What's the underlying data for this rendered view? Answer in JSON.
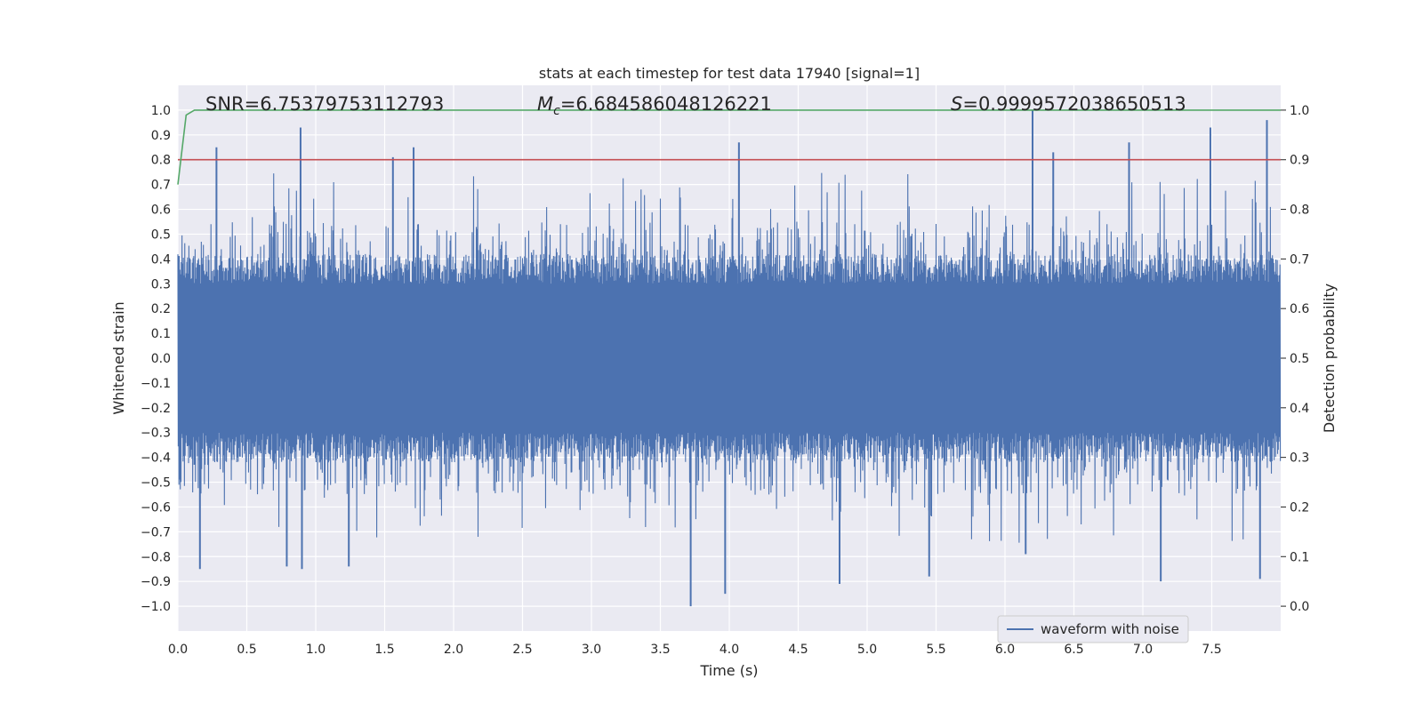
{
  "chart_data": {
    "type": "line",
    "title": "stats at each timestep for test data 17940 [signal=1]",
    "xlabel": "Time (s)",
    "ylabel": "Whitened strain",
    "y2label": "Detection probability",
    "xlim": [
      0.0,
      8.0
    ],
    "ylim": [
      -1.1,
      1.1
    ],
    "y2lim": [
      -0.05,
      1.05
    ],
    "x_ticks": [
      0.0,
      0.5,
      1.0,
      1.5,
      2.0,
      2.5,
      3.0,
      3.5,
      4.0,
      4.5,
      5.0,
      5.5,
      6.0,
      6.5,
      7.0,
      7.5
    ],
    "y_ticks": [
      -1.0,
      -0.9,
      -0.8,
      -0.7,
      -0.6,
      -0.5,
      -0.4,
      -0.3,
      -0.2,
      -0.1,
      0.0,
      0.1,
      0.2,
      0.3,
      0.4,
      0.5,
      0.6,
      0.7,
      0.8,
      0.9,
      1.0
    ],
    "y2_ticks": [
      0.0,
      0.1,
      0.2,
      0.3,
      0.4,
      0.5,
      0.6,
      0.7,
      0.8,
      0.9,
      1.0
    ],
    "grid": true,
    "legend": {
      "position": "lower-right",
      "entries": [
        "waveform with noise"
      ]
    },
    "annotations": {
      "snr_text": "SNR=6.75379753112793",
      "mc_symbol": "M",
      "mc_sub": "c",
      "mc_value": "=6.684586048126221",
      "s_symbol": "S",
      "s_value": "=0.9999572038650513"
    },
    "series": [
      {
        "name": "waveform with noise",
        "axis": "left",
        "color": "#4c72b0",
        "style": "dense noise, |y| up to 1.0, bulk within ±0.4",
        "sample_peaks": [
          {
            "x": 0.28,
            "y": 0.85
          },
          {
            "x": 0.89,
            "y": 0.93
          },
          {
            "x": 1.56,
            "y": 0.81
          },
          {
            "x": 1.71,
            "y": 0.85
          },
          {
            "x": 4.07,
            "y": 0.87
          },
          {
            "x": 6.2,
            "y": 1.0
          },
          {
            "x": 6.35,
            "y": 0.83
          },
          {
            "x": 6.9,
            "y": 0.87
          },
          {
            "x": 7.49,
            "y": 0.93
          },
          {
            "x": 7.9,
            "y": 0.96
          },
          {
            "x": 0.16,
            "y": -0.85
          },
          {
            "x": 0.79,
            "y": -0.84
          },
          {
            "x": 0.9,
            "y": -0.85
          },
          {
            "x": 1.24,
            "y": -0.84
          },
          {
            "x": 3.72,
            "y": -1.0
          },
          {
            "x": 3.97,
            "y": -0.95
          },
          {
            "x": 4.8,
            "y": -0.91
          },
          {
            "x": 5.45,
            "y": -0.88
          },
          {
            "x": 6.15,
            "y": -0.79
          },
          {
            "x": 7.13,
            "y": -0.9
          },
          {
            "x": 7.85,
            "y": -0.89
          }
        ]
      },
      {
        "name": "detection probability",
        "axis": "right",
        "color": "#55a868",
        "x": [
          0.0,
          0.06,
          0.12,
          0.2,
          8.0
        ],
        "y": [
          0.85,
          0.99,
          1.0,
          1.0,
          1.0
        ]
      },
      {
        "name": "threshold",
        "axis": "right",
        "color": "#c44e52",
        "x": [
          0.0,
          8.0
        ],
        "y": [
          0.9,
          0.9
        ]
      }
    ]
  }
}
